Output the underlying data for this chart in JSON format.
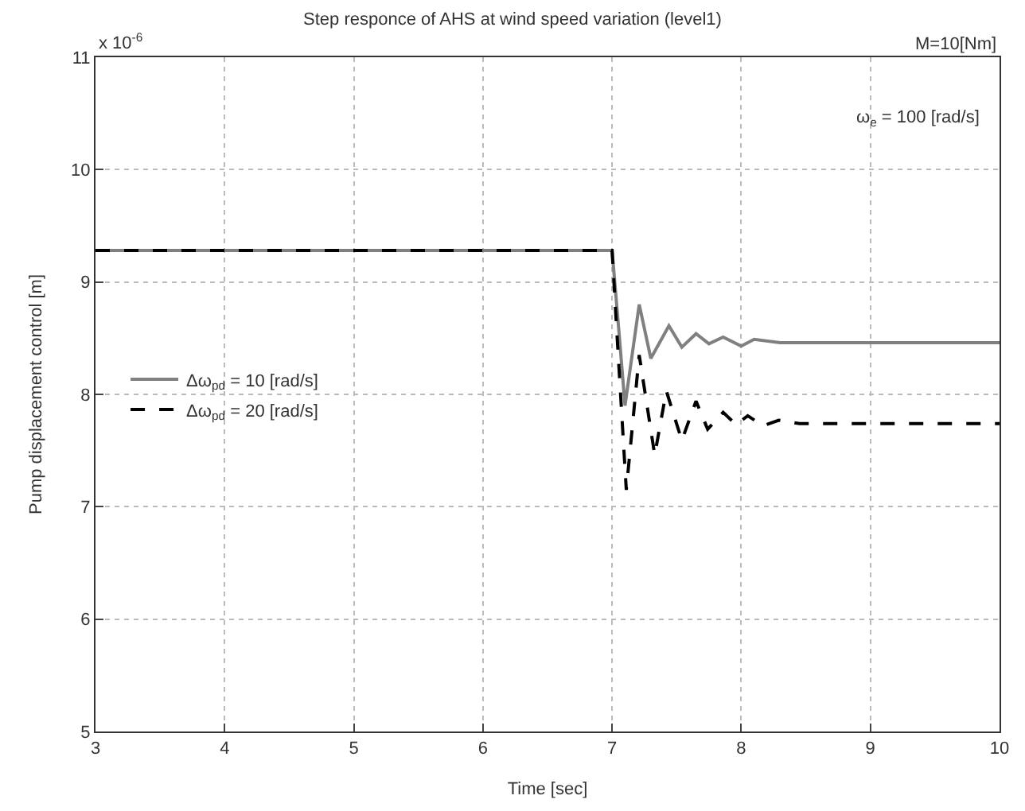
{
  "chart_data": {
    "type": "line",
    "title": "Step responce of AHS at wind speed variation (level1)",
    "xlabel": "Time [sec]",
    "ylabel": "Pump displacement control [m]",
    "annotations": [
      "x 10$^{-6}$",
      "M=10[Nm]",
      "ω$_{e}$ = 100 [rad/s]"
    ],
    "xlim": [
      3,
      10
    ],
    "xticks": [
      3,
      4,
      5,
      6,
      7,
      8,
      9,
      10
    ],
    "ylim": [
      5,
      11
    ],
    "yticks": [
      5,
      6,
      7,
      8,
      9,
      10,
      11
    ],
    "grid": true,
    "legend": "left",
    "marker": "none",
    "series": [
      {
        "name": "Δω$_{pd}$ = 10 [rad/s]",
        "color": "#808080",
        "line_style": "solid",
        "x": [
          3,
          7.0,
          7.05,
          7.1,
          7.21,
          7.3,
          7.44,
          7.54,
          7.65,
          7.75,
          7.86,
          8.0,
          8.1,
          8.3,
          10
        ],
        "values": [
          9.28,
          9.28,
          8.6,
          7.9,
          8.8,
          8.32,
          8.61,
          8.42,
          8.54,
          8.45,
          8.51,
          8.43,
          8.49,
          8.46,
          8.46
        ]
      },
      {
        "name": "Δω$_{pd}$ = 20 [rad/s]",
        "color": "#000000",
        "line_style": "dashed",
        "x": [
          3,
          7.0,
          7.05,
          7.11,
          7.21,
          7.33,
          7.42,
          7.54,
          7.65,
          7.74,
          7.86,
          7.96,
          8.05,
          8.17,
          8.29,
          8.45,
          10
        ],
        "values": [
          9.28,
          9.28,
          8.3,
          7.15,
          8.35,
          7.46,
          8.03,
          7.59,
          7.94,
          7.69,
          7.84,
          7.73,
          7.81,
          7.72,
          7.77,
          7.74,
          7.74
        ]
      }
    ]
  }
}
